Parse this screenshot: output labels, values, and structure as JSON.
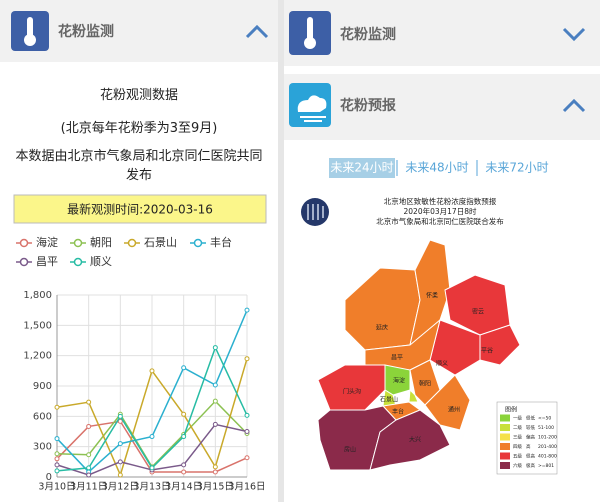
{
  "left_panel": {
    "header": "花粉监测",
    "title": "花粉观测数据",
    "subtitle": "(北京每年花粉季为3至9月)",
    "source": "本数据由北京市气象局和北京同仁医院共同发布",
    "update_time": "最新观测时间:2020-03-16"
  },
  "chart_data": {
    "type": "line",
    "categories": [
      "3月10日",
      "3月11日",
      "3月12日",
      "3月13日",
      "3月14日",
      "3月15日",
      "3月16日"
    ],
    "series": [
      {
        "name": "海淀",
        "color": "#d9736b",
        "values": [
          180,
          500,
          550,
          50,
          50,
          50,
          190
        ]
      },
      {
        "name": "朝阳",
        "color": "#8cc152",
        "values": [
          230,
          220,
          620,
          100,
          420,
          750,
          430
        ]
      },
      {
        "name": "石景山",
        "color": "#c9a92a",
        "values": [
          690,
          740,
          20,
          1050,
          620,
          100,
          1170
        ]
      },
      {
        "name": "丰台",
        "color": "#2bb0cf",
        "values": [
          380,
          50,
          330,
          400,
          1080,
          910,
          1650
        ]
      },
      {
        "name": "昌平",
        "color": "#7a5a8a",
        "values": [
          120,
          20,
          150,
          70,
          120,
          520,
          450
        ]
      },
      {
        "name": "顺义",
        "color": "#27bca4",
        "values": [
          60,
          90,
          600,
          90,
          400,
          1280,
          610
        ]
      }
    ],
    "ylim": [
      0,
      1800
    ],
    "yticks": [
      0,
      300,
      600,
      900,
      {
        "value": 1200,
        "label": "1,200"
      },
      {
        "value": 1500,
        "label": "1,500"
      },
      {
        "value": 1800,
        "label": "1,800"
      }
    ],
    "grid": true
  },
  "right_panel": {
    "header_monitor": "花粉监测",
    "header_forecast": "花粉预报",
    "tabs": [
      "未来24小时",
      "未来48小时",
      "未来72小时"
    ],
    "map": {
      "title": "北京地区致敏性花粉浓度指数预报",
      "time": "2020年03月17日8时",
      "publisher": "北京市气象局和北京同仁医院联合发布",
      "districts": [
        "延庆",
        "怀柔",
        "密云",
        "平谷",
        "顺义",
        "昌平",
        "门头沟",
        "海淀",
        "朝阳",
        "石景山",
        "丰台",
        "通州",
        "房山",
        "大兴"
      ],
      "legend": {
        "title": "图例",
        "levels": [
          {
            "grade": "一级",
            "name": "很低",
            "range": "<=50"
          },
          {
            "grade": "二级",
            "name": "较低",
            "range": "51-100"
          },
          {
            "grade": "三级",
            "name": "偏高",
            "range": "101-200"
          },
          {
            "grade": "四级",
            "name": "高",
            "range": "201-400"
          },
          {
            "grade": "五级",
            "name": "很高",
            "range": "401-800"
          },
          {
            "grade": "六级",
            "name": "极高",
            "range": ">=801"
          }
        ]
      }
    }
  }
}
